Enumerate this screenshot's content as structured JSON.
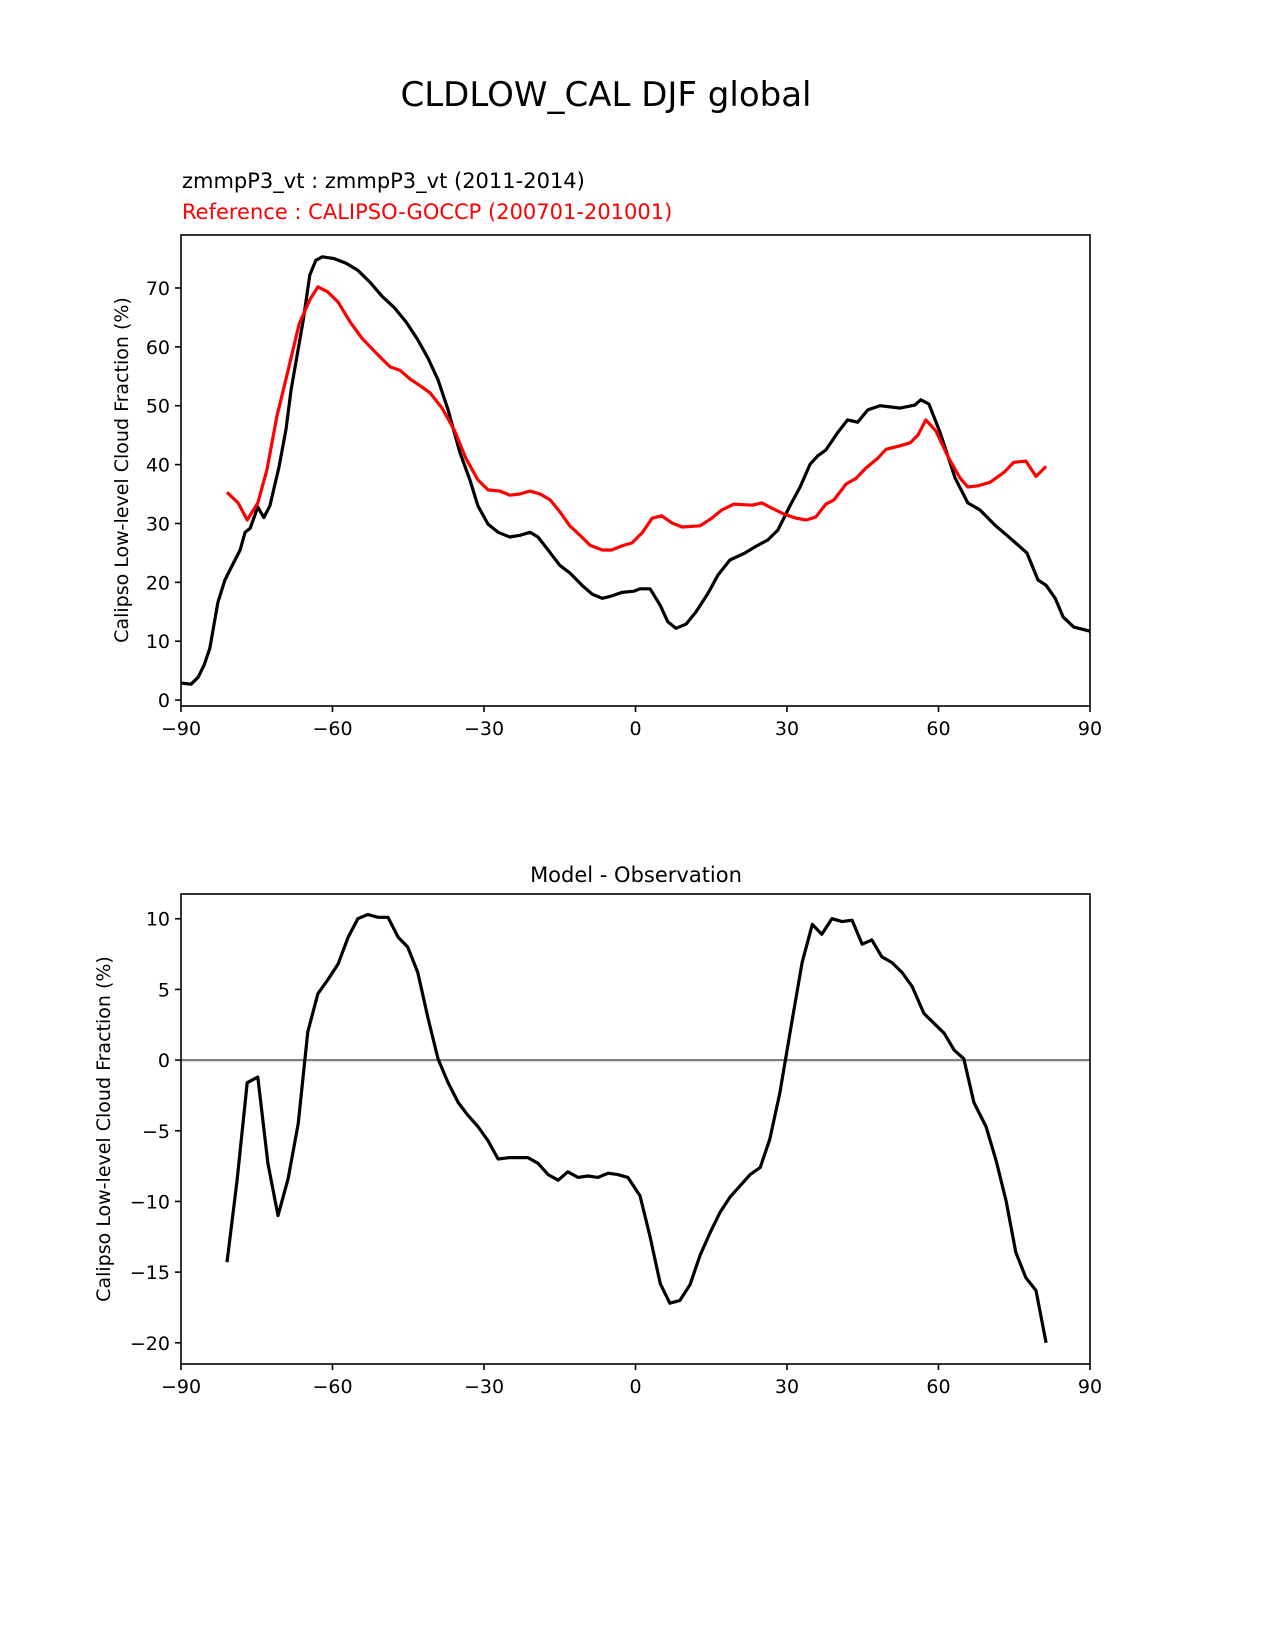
{
  "chart_data": [
    {
      "type": "line",
      "title": "CLDLOW_CAL DJF global",
      "subtitle_model": "zmmpP3_vt : zmmpP3_vt (2011-2014)",
      "subtitle_reference": "Reference : CALIPSO-GOCCP (200701-201001)",
      "xlabel": "",
      "ylabel": "Calipso Low-level Cloud Fraction (%)",
      "xlim": [
        -90,
        90
      ],
      "ylim": [
        -1.0,
        79.0
      ],
      "xticks": [
        -90,
        -60,
        -30,
        0,
        30,
        60,
        90
      ],
      "xtick_labels": [
        "−90",
        "−60",
        "−30",
        "0",
        "30",
        "60",
        "90"
      ],
      "yticks": [
        0,
        10,
        20,
        30,
        40,
        50,
        60,
        70
      ],
      "ytick_labels": [
        "0",
        "10",
        "20",
        "30",
        "40",
        "50",
        "60",
        "70"
      ],
      "grid": false,
      "series": [
        {
          "name": "zmmpP3_vt",
          "color": "#000000",
          "points": [
            [
              -90,
              2.9
            ],
            [
              -88,
              2.7
            ],
            [
              -86.6,
              3.9
            ],
            [
              -85.4,
              6
            ],
            [
              -84.3,
              8.8
            ],
            [
              -82.7,
              16.6
            ],
            [
              -81.3,
              20.4
            ],
            [
              -79.9,
              22.8
            ],
            [
              -78.3,
              25.5
            ],
            [
              -77.3,
              28.5
            ],
            [
              -76.3,
              29.2
            ],
            [
              -74.8,
              32.8
            ],
            [
              -73.6,
              31
            ],
            [
              -72.4,
              33
            ],
            [
              -70.6,
              39.6
            ],
            [
              -69.2,
              46
            ],
            [
              -68.2,
              52.7
            ],
            [
              -65.8,
              64.5
            ],
            [
              -64.5,
              72.2
            ],
            [
              -63.3,
              74.7
            ],
            [
              -62,
              75.3
            ],
            [
              -59.7,
              75
            ],
            [
              -57.3,
              74.2
            ],
            [
              -55,
              73
            ],
            [
              -52.6,
              71
            ],
            [
              -50.2,
              68.6
            ],
            [
              -47.8,
              66.7
            ],
            [
              -45.4,
              64.2
            ],
            [
              -43.1,
              61.2
            ],
            [
              -41.1,
              58.1
            ],
            [
              -39.1,
              54.4
            ],
            [
              -37.1,
              49.3
            ],
            [
              -34.8,
              42.1
            ],
            [
              -32.8,
              37.4
            ],
            [
              -31.2,
              33
            ],
            [
              -29.2,
              29.9
            ],
            [
              -27.2,
              28.5
            ],
            [
              -24.9,
              27.7
            ],
            [
              -22.9,
              28
            ],
            [
              -20.9,
              28.5
            ],
            [
              -19.3,
              27.7
            ],
            [
              -17.3,
              25.5
            ],
            [
              -15,
              22.9
            ],
            [
              -13,
              21.6
            ],
            [
              -10.6,
              19.5
            ],
            [
              -8.6,
              18
            ],
            [
              -6.6,
              17.3
            ],
            [
              -4.7,
              17.7
            ],
            [
              -2.7,
              18.3
            ],
            [
              -0.3,
              18.5
            ],
            [
              0.9,
              18.9
            ],
            [
              2.9,
              18.9
            ],
            [
              4.9,
              16.1
            ],
            [
              6.4,
              13.3
            ],
            [
              8,
              12.2
            ],
            [
              10,
              12.9
            ],
            [
              12,
              15
            ],
            [
              14.4,
              18.2
            ],
            [
              16.3,
              21.2
            ],
            [
              18.7,
              23.8
            ],
            [
              21.7,
              25
            ],
            [
              24,
              26.2
            ],
            [
              26.2,
              27.2
            ],
            [
              28.2,
              28.9
            ],
            [
              30.6,
              33
            ],
            [
              32.6,
              36.2
            ],
            [
              34.6,
              40.1
            ],
            [
              36.1,
              41.5
            ],
            [
              37.7,
              42.5
            ],
            [
              40.1,
              45.5
            ],
            [
              42,
              47.6
            ],
            [
              44,
              47.2
            ],
            [
              46,
              49.3
            ],
            [
              48.4,
              50
            ],
            [
              52.4,
              49.6
            ],
            [
              55.3,
              50.1
            ],
            [
              56.5,
              51
            ],
            [
              58.1,
              50.3
            ],
            [
              60.3,
              45.5
            ],
            [
              63.3,
              37.7
            ],
            [
              65.8,
              33.5
            ],
            [
              68.2,
              32.3
            ],
            [
              71.2,
              29.7
            ],
            [
              74.2,
              27.5
            ],
            [
              77.5,
              25
            ],
            [
              79.7,
              20.4
            ],
            [
              81.3,
              19.5
            ],
            [
              83.1,
              17.3
            ],
            [
              84.7,
              14.1
            ],
            [
              86.8,
              12.4
            ],
            [
              90,
              11.7
            ]
          ]
        },
        {
          "name": "CALIPSO-GOCCP",
          "color": "#ff0000",
          "points": [
            [
              -80.9,
              35.3
            ],
            [
              -78.7,
              33.5
            ],
            [
              -76.9,
              30.6
            ],
            [
              -74.8,
              33.5
            ],
            [
              -73,
              39.1
            ],
            [
              -71,
              48.2
            ],
            [
              -68.8,
              56
            ],
            [
              -66.6,
              63.9
            ],
            [
              -64.5,
              68
            ],
            [
              -62.9,
              70.2
            ],
            [
              -60.9,
              69.3
            ],
            [
              -58.9,
              67.6
            ],
            [
              -56.5,
              64.2
            ],
            [
              -54.2,
              61.5
            ],
            [
              -51.4,
              59
            ],
            [
              -48.6,
              56.6
            ],
            [
              -46.6,
              56
            ],
            [
              -44.6,
              54.5
            ],
            [
              -42.3,
              53.2
            ],
            [
              -40.7,
              52.2
            ],
            [
              -38.3,
              49.6
            ],
            [
              -35.9,
              45.9
            ],
            [
              -33.6,
              41.1
            ],
            [
              -31.2,
              37.4
            ],
            [
              -29.2,
              35.7
            ],
            [
              -26.8,
              35.5
            ],
            [
              -24.9,
              34.8
            ],
            [
              -22.9,
              35
            ],
            [
              -20.9,
              35.5
            ],
            [
              -18.9,
              35
            ],
            [
              -16.9,
              34
            ],
            [
              -15,
              32
            ],
            [
              -13,
              29.6
            ],
            [
              -11,
              28
            ],
            [
              -9,
              26.3
            ],
            [
              -6.6,
              25.5
            ],
            [
              -4.7,
              25.5
            ],
            [
              -2.7,
              26.2
            ],
            [
              -0.7,
              26.7
            ],
            [
              1.3,
              28.4
            ],
            [
              3.3,
              30.9
            ],
            [
              5.2,
              31.3
            ],
            [
              7.2,
              30.1
            ],
            [
              9.2,
              29.4
            ],
            [
              12.8,
              29.6
            ],
            [
              15.1,
              30.9
            ],
            [
              17.1,
              32.3
            ],
            [
              19.5,
              33.3
            ],
            [
              23.1,
              33.1
            ],
            [
              25,
              33.5
            ],
            [
              27,
              32.6
            ],
            [
              29.4,
              31.6
            ],
            [
              31.8,
              30.9
            ],
            [
              33.8,
              30.6
            ],
            [
              35.7,
              31.1
            ],
            [
              37.7,
              33.3
            ],
            [
              39.3,
              34
            ],
            [
              41.7,
              36.7
            ],
            [
              43.7,
              37.7
            ],
            [
              45.6,
              39.4
            ],
            [
              48,
              41.1
            ],
            [
              49.6,
              42.6
            ],
            [
              52.4,
              43.2
            ],
            [
              54.4,
              43.7
            ],
            [
              55.9,
              45
            ],
            [
              57.5,
              47.6
            ],
            [
              59.5,
              45.7
            ],
            [
              61.9,
              41.3
            ],
            [
              64.3,
              37.7
            ],
            [
              65.8,
              36.2
            ],
            [
              67.8,
              36.4
            ],
            [
              70.2,
              37
            ],
            [
              73,
              38.7
            ],
            [
              74.9,
              40.4
            ],
            [
              77.3,
              40.6
            ],
            [
              79.3,
              38
            ],
            [
              81.3,
              39.7
            ]
          ]
        }
      ]
    },
    {
      "type": "line",
      "title": "Model - Observation",
      "xlabel": "",
      "ylabel": "Calipso Low-level Cloud Fraction (%)",
      "xlim": [
        -90,
        90
      ],
      "ylim": [
        -21.5,
        11.75
      ],
      "xticks": [
        -90,
        -60,
        -30,
        0,
        30,
        60,
        90
      ],
      "xtick_labels": [
        "−90",
        "−60",
        "−30",
        "0",
        "30",
        "60",
        "90"
      ],
      "yticks": [
        -20,
        -15,
        -10,
        -5,
        0,
        5,
        10
      ],
      "ytick_labels": [
        "−20",
        "−15",
        "−10",
        "−5",
        "0",
        "5",
        "10"
      ],
      "grid": false,
      "zero_line_color": "#808080",
      "series": [
        {
          "name": "Model - Observation",
          "color": "#000000",
          "points": [
            [
              -80.9,
              -14.3
            ],
            [
              -78.9,
              -8.5
            ],
            [
              -76.9,
              -1.6
            ],
            [
              -74.8,
              -1.2
            ],
            [
              -72.8,
              -7.3
            ],
            [
              -70.8,
              -11
            ],
            [
              -68.8,
              -8.4
            ],
            [
              -66.8,
              -4.5
            ],
            [
              -64.9,
              2
            ],
            [
              -62.9,
              4.7
            ],
            [
              -60.9,
              5.7
            ],
            [
              -58.9,
              6.8
            ],
            [
              -56.9,
              8.7
            ],
            [
              -55,
              10
            ],
            [
              -53,
              10.3
            ],
            [
              -51,
              10.1
            ],
            [
              -49,
              10.1
            ],
            [
              -47,
              8.7
            ],
            [
              -45.1,
              8
            ],
            [
              -43.1,
              6.2
            ],
            [
              -41.1,
              3
            ],
            [
              -39.1,
              0.1
            ],
            [
              -37.1,
              -1.6
            ],
            [
              -35.1,
              -3
            ],
            [
              -33.2,
              -3.9
            ],
            [
              -31.2,
              -4.7
            ],
            [
              -29.2,
              -5.7
            ],
            [
              -27.2,
              -7
            ],
            [
              -24.9,
              -6.9
            ],
            [
              -21.3,
              -6.9
            ],
            [
              -19.3,
              -7.3
            ],
            [
              -17.3,
              -8.1
            ],
            [
              -15.3,
              -8.5
            ],
            [
              -13.4,
              -7.9
            ],
            [
              -11.4,
              -8.3
            ],
            [
              -9.4,
              -8.2
            ],
            [
              -7.4,
              -8.3
            ],
            [
              -5.4,
              -8
            ],
            [
              -3.5,
              -8.1
            ],
            [
              -1.5,
              -8.3
            ],
            [
              0.9,
              -9.6
            ],
            [
              2.9,
              -12.5
            ],
            [
              4.9,
              -15.8
            ],
            [
              6.8,
              -17.2
            ],
            [
              8.8,
              -17
            ],
            [
              10.8,
              -15.9
            ],
            [
              12.8,
              -13.8
            ],
            [
              14.8,
              -12.2
            ],
            [
              16.7,
              -10.8
            ],
            [
              18.7,
              -9.7
            ],
            [
              20.7,
              -8.9
            ],
            [
              22.7,
              -8.1
            ],
            [
              24.7,
              -7.6
            ],
            [
              26.6,
              -5.6
            ],
            [
              28.6,
              -2.3
            ],
            [
              31,
              2.8
            ],
            [
              33,
              6.9
            ],
            [
              35,
              9.6
            ],
            [
              36.9,
              8.9
            ],
            [
              38.9,
              10
            ],
            [
              40.9,
              9.8
            ],
            [
              42.9,
              9.9
            ],
            [
              44.9,
              8.2
            ],
            [
              46.8,
              8.5
            ],
            [
              48.8,
              7.3
            ],
            [
              50.8,
              6.9
            ],
            [
              52.8,
              6.2
            ],
            [
              54.8,
              5.2
            ],
            [
              57.1,
              3.3
            ],
            [
              59.1,
              2.6
            ],
            [
              61.1,
              1.9
            ],
            [
              63.1,
              0.7
            ],
            [
              65,
              0.1
            ],
            [
              67,
              -3
            ],
            [
              69.4,
              -4.7
            ],
            [
              71.4,
              -7.1
            ],
            [
              73.4,
              -10
            ],
            [
              75.3,
              -13.6
            ],
            [
              77.3,
              -15.4
            ],
            [
              79.3,
              -16.3
            ],
            [
              81.3,
              -20
            ]
          ]
        }
      ]
    }
  ]
}
